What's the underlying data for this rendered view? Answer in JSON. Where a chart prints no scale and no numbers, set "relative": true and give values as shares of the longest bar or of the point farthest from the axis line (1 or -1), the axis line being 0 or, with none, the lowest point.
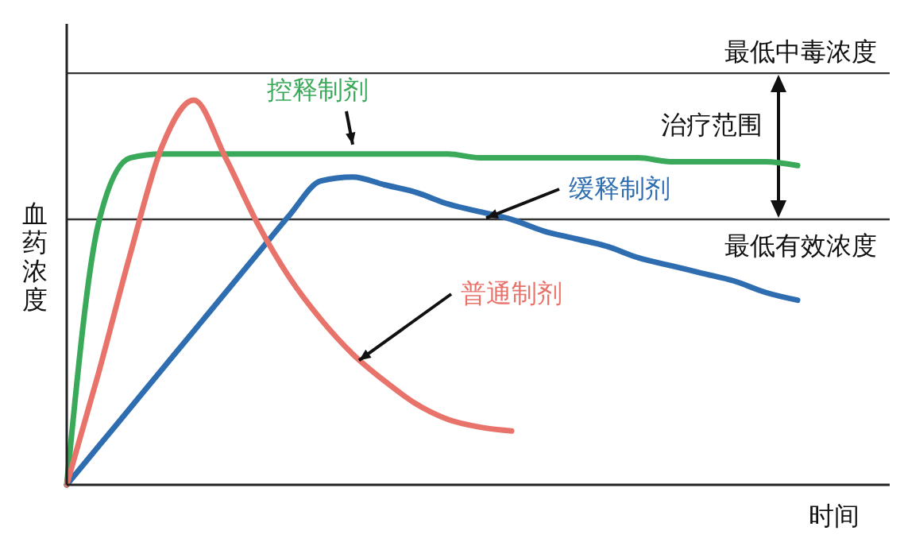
{
  "chart_data": {
    "type": "line",
    "relative": true,
    "xlabel": "时间",
    "ylabel": "血药浓度",
    "categories": [
      null,
      null,
      null,
      null,
      null,
      null,
      null,
      null,
      null,
      null,
      null,
      null,
      null,
      null,
      null,
      null,
      null,
      null,
      null,
      null,
      null,
      null,
      null,
      null,
      null
    ],
    "series": [
      {
        "name": "控释制剂",
        "color": "#3aaa5a",
        "values": [
          0,
          0.68,
          0.85,
          0.86,
          0.86,
          0.86,
          0.86,
          0.86,
          0.86,
          0.86,
          0.86,
          0.86,
          0.86,
          0.85,
          0.85,
          0.85,
          0.85,
          0.85,
          0.85,
          0.84,
          0.84,
          0.84,
          0.84,
          0.83,
          null
        ]
      },
      {
        "name": "缓释制剂",
        "color": "#2e6db0",
        "values": [
          0,
          0.1,
          0.2,
          0.3,
          0.4,
          0.5,
          0.6,
          0.7,
          0.79,
          0.8,
          0.78,
          0.76,
          0.73,
          0.71,
          0.69,
          0.66,
          0.64,
          0.62,
          0.59,
          0.57,
          0.55,
          0.53,
          0.5,
          0.48,
          null
        ]
      },
      {
        "name": "普通制剂",
        "color": "#e8736b",
        "values": [
          0,
          0.29,
          0.6,
          0.88,
          1,
          0.85,
          0.68,
          0.54,
          0.43,
          0.34,
          0.27,
          0.21,
          0.17,
          0.15,
          0.14,
          null,
          null,
          null,
          null,
          null,
          null,
          null,
          null,
          null,
          null
        ]
      }
    ],
    "ref_lines": [
      {
        "axis": "y",
        "value": 1.07,
        "label": "最低中毒浓度",
        "color": "#333333"
      },
      {
        "axis": "y",
        "value": 0.69,
        "label": "最低有效浓度",
        "color": "#333333"
      }
    ],
    "annotations": [
      "治疗范围"
    ]
  }
}
